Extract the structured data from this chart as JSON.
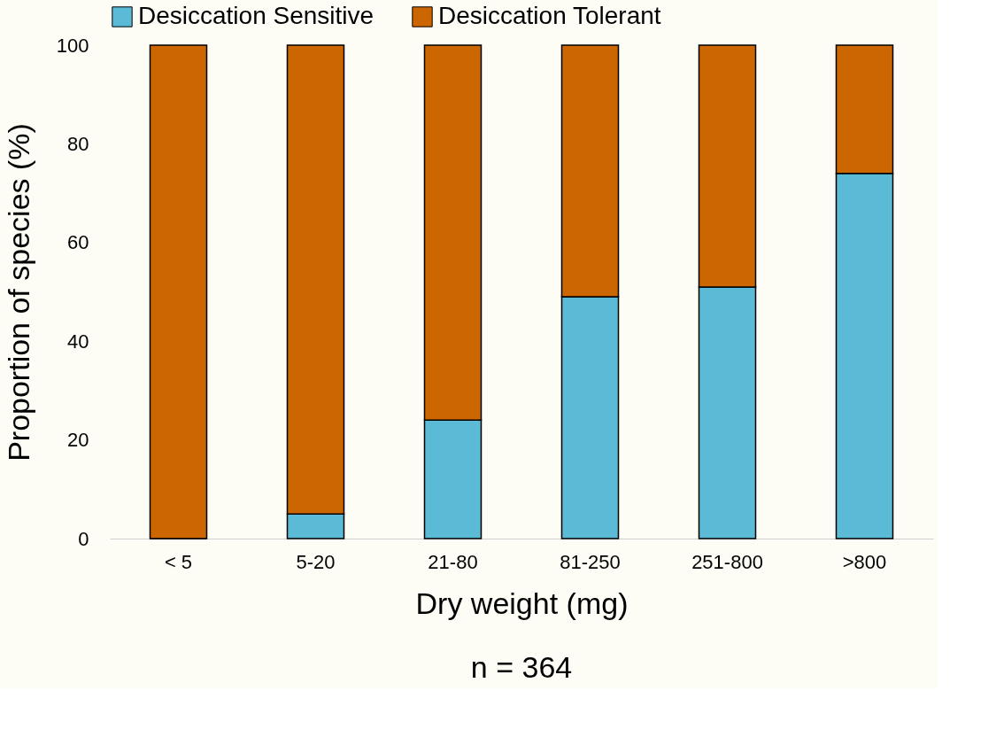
{
  "chart_data": {
    "type": "bar",
    "stacked": true,
    "xlabel": "Dry weight (mg)",
    "ylabel": "Proportion of species (%)",
    "categories": [
      "< 5",
      "5-20",
      "21-80",
      "81-250",
      "251-800",
      ">800"
    ],
    "series": [
      {
        "name": "Desiccation Sensitive",
        "color": "#5bbad5",
        "values": [
          0,
          5,
          24,
          49,
          51,
          74
        ]
      },
      {
        "name": "Desiccation Tolerant",
        "color": "#cc6600",
        "values": [
          100,
          95,
          76,
          51,
          49,
          26
        ]
      }
    ],
    "ylim": [
      0,
      100
    ],
    "yticks": [
      0,
      20,
      40,
      60,
      80,
      100
    ],
    "grid": false,
    "legend": "top",
    "annotations": [
      "n = 364"
    ]
  }
}
